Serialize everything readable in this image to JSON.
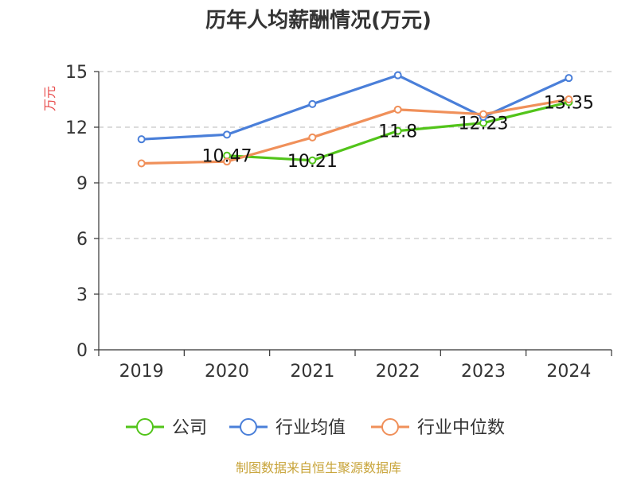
{
  "chart_data": {
    "type": "line",
    "title": "历年人均薪酬情况(万元)",
    "ylabel": "万元",
    "xlabel": "",
    "categories": [
      "2019",
      "2020",
      "2021",
      "2022",
      "2023",
      "2024"
    ],
    "ylim": [
      0,
      15
    ],
    "yticks": [
      "0",
      "3",
      "6",
      "9",
      "12",
      "15"
    ],
    "grid": true,
    "legend_position": "bottom",
    "series": [
      {
        "name": "公司",
        "color": "#52c41a",
        "values": [
          null,
          10.47,
          10.21,
          11.8,
          12.23,
          13.35
        ],
        "labels": [
          null,
          "10.47",
          "10.21",
          "11.8",
          "12.23",
          "13.35"
        ]
      },
      {
        "name": "行业均值",
        "color": "#4a7fd9",
        "values": [
          11.35,
          11.6,
          13.25,
          14.8,
          12.55,
          14.65
        ]
      },
      {
        "name": "行业中位数",
        "color": "#f0905a",
        "values": [
          10.05,
          10.15,
          11.45,
          12.95,
          12.7,
          13.5
        ]
      }
    ]
  },
  "source_text": "制图数据来自恒生聚源数据库",
  "colors": {
    "ylabel": "#e84a4a",
    "source": "#c8a43a",
    "grid": "#c8c8c8",
    "axis": "#333333"
  }
}
